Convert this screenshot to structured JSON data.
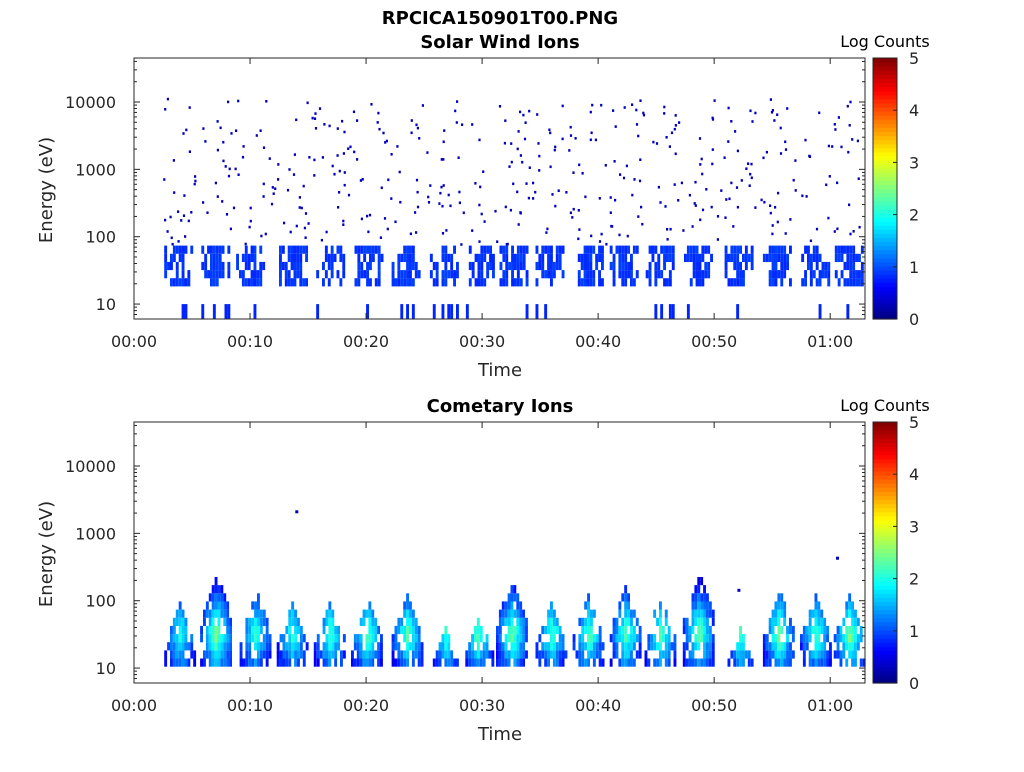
{
  "figure_title": "RPCICA150901T00.PNG",
  "chart_data": [
    {
      "type": "heatmap",
      "title": "Solar Wind Ions",
      "xlabel": "Time",
      "ylabel": "Energy (eV)",
      "x_ticks": [
        "00:00",
        "00:10",
        "00:20",
        "00:30",
        "00:40",
        "00:50",
        "01:00"
      ],
      "x_tick_minutes": [
        0,
        10,
        20,
        30,
        40,
        50,
        60
      ],
      "xlim_minutes": [
        0,
        63
      ],
      "y_scale": "log",
      "y_ticks": [
        "10",
        "100",
        "1000",
        "10000"
      ],
      "y_tick_values": [
        10,
        100,
        1000,
        10000
      ],
      "ylim": [
        6,
        45000
      ],
      "colorbar": {
        "label": "Log Counts",
        "ticks": [
          "0",
          "1",
          "2",
          "3",
          "4",
          "5"
        ],
        "range": [
          0,
          5
        ]
      },
      "features": {
        "low_energy_bursts": {
          "energy_range_eV": [
            17,
            70
          ],
          "log_counts": 0.8,
          "center_minutes": [
            3.8,
            7,
            10,
            13.7,
            16.9,
            20.2,
            23.4,
            26.7,
            29.8,
            32.7,
            35.8,
            39.2,
            42.2,
            45.3,
            48.6,
            52.1,
            55.4,
            58.7,
            61.6
          ]
        },
        "sparse_hits": {
          "energy_range_eV": [
            80,
            12000
          ],
          "log_counts": 0.3
        }
      }
    },
    {
      "type": "heatmap",
      "title": "Cometary Ions",
      "xlabel": "Time",
      "ylabel": "Energy (eV)",
      "x_ticks": [
        "00:00",
        "00:10",
        "00:20",
        "00:30",
        "00:40",
        "00:50",
        "01:00"
      ],
      "x_tick_minutes": [
        0,
        10,
        20,
        30,
        40,
        50,
        60
      ],
      "xlim_minutes": [
        0,
        63
      ],
      "y_scale": "log",
      "y_ticks": [
        "10",
        "100",
        "1000",
        "10000"
      ],
      "y_tick_values": [
        10,
        100,
        1000,
        10000
      ],
      "ylim": [
        6,
        45000
      ],
      "colorbar": {
        "label": "Log Counts",
        "ticks": [
          "0",
          "1",
          "2",
          "3",
          "4",
          "5"
        ],
        "range": [
          0,
          5
        ]
      },
      "features": {
        "bursts": [
          {
            "center_minutes": 3.9,
            "peak_eV": 100,
            "max_log_counts": 2.1
          },
          {
            "center_minutes": 7.0,
            "peak_eV": 240,
            "max_log_counts": 2.6
          },
          {
            "center_minutes": 10.4,
            "peak_eV": 140,
            "max_log_counts": 2.2
          },
          {
            "center_minutes": 13.6,
            "peak_eV": 90,
            "max_log_counts": 2.2
          },
          {
            "center_minutes": 16.8,
            "peak_eV": 100,
            "max_log_counts": 2.3
          },
          {
            "center_minutes": 20.0,
            "peak_eV": 110,
            "max_log_counts": 2.4
          },
          {
            "center_minutes": 23.5,
            "peak_eV": 130,
            "max_log_counts": 2.4
          },
          {
            "center_minutes": 26.8,
            "peak_eV": 40,
            "max_log_counts": 2.2
          },
          {
            "center_minutes": 29.6,
            "peak_eV": 60,
            "max_log_counts": 2.4
          },
          {
            "center_minutes": 32.5,
            "peak_eV": 200,
            "max_log_counts": 2.5
          },
          {
            "center_minutes": 35.9,
            "peak_eV": 90,
            "max_log_counts": 2.3
          },
          {
            "center_minutes": 39.1,
            "peak_eV": 120,
            "max_log_counts": 2.4
          },
          {
            "center_minutes": 42.3,
            "peak_eV": 170,
            "max_log_counts": 2.4
          },
          {
            "center_minutes": 45.3,
            "peak_eV": 120,
            "max_log_counts": 2.4
          },
          {
            "center_minutes": 48.6,
            "peak_eV": 250,
            "max_log_counts": 2.5
          },
          {
            "center_minutes": 52.2,
            "peak_eV": 40,
            "max_log_counts": 2.3
          },
          {
            "center_minutes": 55.5,
            "peak_eV": 140,
            "max_log_counts": 2.5
          },
          {
            "center_minutes": 58.7,
            "peak_eV": 120,
            "max_log_counts": 2.3
          },
          {
            "center_minutes": 61.6,
            "peak_eV": 130,
            "max_log_counts": 2.6
          }
        ],
        "isolated_points": [
          {
            "minutes": 13.9,
            "eV": 2200
          },
          {
            "minutes": 60.5,
            "eV": 450
          },
          {
            "minutes": 52.0,
            "eV": 150
          }
        ]
      }
    }
  ]
}
